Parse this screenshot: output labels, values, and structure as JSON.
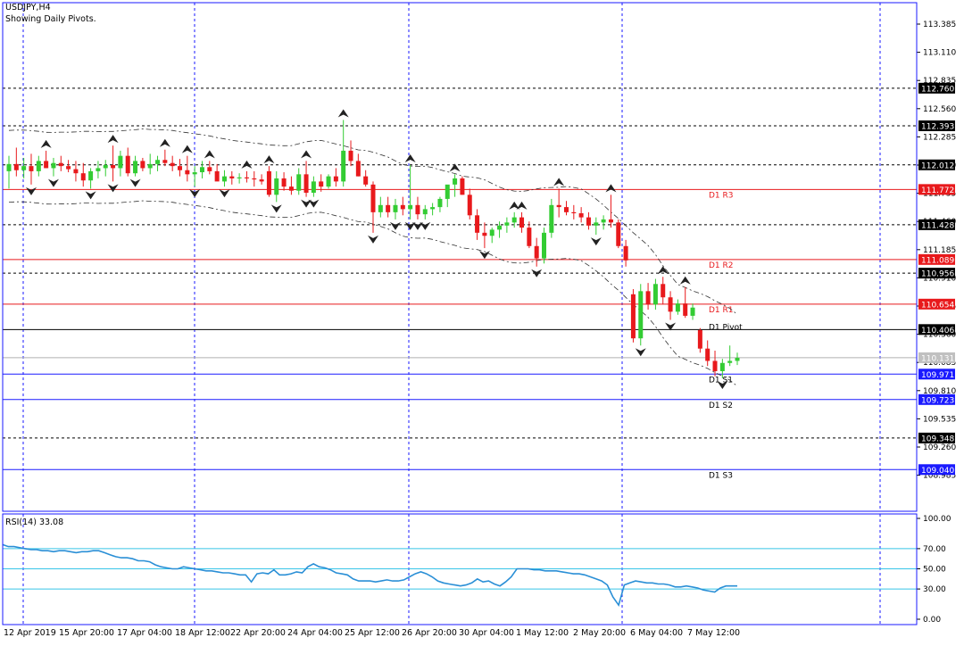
{
  "header": {
    "symbol": "USDJPY,H4",
    "subtitle": "Showing Daily Pivots."
  },
  "colors": {
    "up": "#33cc33",
    "down": "#e8191c",
    "pivot_red": "#e8191c",
    "pivot_blue": "#1a1aff",
    "black_level": "#000000",
    "rsi_line": "#2a8fd6",
    "rsi_level": "#38c5e8",
    "grid_v": "#1a1aff",
    "frame": "#1a1aff"
  },
  "chart_data": [
    {
      "type": "candlestick",
      "title": "USDJPY,H4",
      "subtitle": "Showing Daily Pivots.",
      "ylim": [
        108.885,
        113.385
      ],
      "y_ticks": [
        113.385,
        113.11,
        112.835,
        112.56,
        112.285,
        112.01,
        111.735,
        111.46,
        111.185,
        110.91,
        110.635,
        110.36,
        110.085,
        109.81,
        109.535,
        109.26,
        108.985
      ],
      "x_ticks": [
        "12 Apr 2019",
        "15 Apr 20:00",
        "17 Apr 04:00",
        "18 Apr 12:00",
        "22 Apr 20:00",
        "24 Apr 04:00",
        "25 Apr 12:00",
        "26 Apr 20:00",
        "30 Apr 04:00",
        "1 May 12:00",
        "2 May 20:00",
        "6 May 04:00",
        "7 May 12:00"
      ],
      "current_price": "110.131",
      "pivots": [
        {
          "label": "D1 R3",
          "value": 111.772,
          "text": "111.772",
          "color": "red"
        },
        {
          "label": "D1 R2",
          "value": 111.089,
          "text": "111.089",
          "color": "red"
        },
        {
          "label": "D1 R1",
          "value": 110.654,
          "text": "110.654",
          "color": "red"
        },
        {
          "label": "D1 Pivot",
          "value": 110.406,
          "text": "110.406",
          "color": "black"
        },
        {
          "label": "D1 S1",
          "value": 109.971,
          "text": "109.971",
          "color": "blue"
        },
        {
          "label": "D1 S2",
          "value": 109.723,
          "text": "109.723",
          "color": "blue"
        },
        {
          "label": "D1 S3",
          "value": 109.04,
          "text": "109.040",
          "color": "blue"
        }
      ],
      "fib_levels": [
        {
          "value": 112.76,
          "text": "112.760"
        },
        {
          "value": 112.393,
          "text": "112.393"
        },
        {
          "value": 112.012,
          "text": "112.012"
        },
        {
          "value": 111.428,
          "text": "111.428"
        },
        {
          "value": 110.956,
          "text": "110.956"
        },
        {
          "value": 109.348,
          "text": "109.348"
        }
      ],
      "candles": [
        {
          "o": 111.95,
          "h": 112.1,
          "l": 111.78,
          "c": 112.02
        },
        {
          "o": 112.02,
          "h": 112.18,
          "l": 111.9,
          "c": 111.96
        },
        {
          "o": 111.96,
          "h": 112.08,
          "l": 111.88,
          "c": 112.0
        },
        {
          "o": 112.0,
          "h": 112.12,
          "l": 111.82,
          "c": 111.95
        },
        {
          "o": 111.95,
          "h": 112.1,
          "l": 111.9,
          "c": 112.05
        },
        {
          "o": 112.05,
          "h": 112.15,
          "l": 111.98,
          "c": 111.98
        },
        {
          "o": 111.98,
          "h": 112.08,
          "l": 111.9,
          "c": 112.03
        },
        {
          "o": 112.03,
          "h": 112.1,
          "l": 111.95,
          "c": 112.0
        },
        {
          "o": 112.0,
          "h": 112.06,
          "l": 111.94,
          "c": 111.97
        },
        {
          "o": 111.97,
          "h": 112.05,
          "l": 111.85,
          "c": 111.93
        },
        {
          "o": 111.93,
          "h": 112.03,
          "l": 111.8,
          "c": 111.86
        },
        {
          "o": 111.86,
          "h": 111.98,
          "l": 111.78,
          "c": 111.95
        },
        {
          "o": 111.95,
          "h": 112.05,
          "l": 111.88,
          "c": 111.98
        },
        {
          "o": 111.98,
          "h": 112.06,
          "l": 111.9,
          "c": 112.01
        },
        {
          "o": 112.01,
          "h": 112.2,
          "l": 111.85,
          "c": 111.98
        },
        {
          "o": 111.98,
          "h": 112.15,
          "l": 111.9,
          "c": 112.1
        },
        {
          "o": 112.1,
          "h": 112.18,
          "l": 111.9,
          "c": 111.93
        },
        {
          "o": 111.93,
          "h": 112.1,
          "l": 111.9,
          "c": 112.05
        },
        {
          "o": 112.05,
          "h": 112.08,
          "l": 111.95,
          "c": 111.98
        },
        {
          "o": 111.98,
          "h": 112.12,
          "l": 111.92,
          "c": 112.02
        },
        {
          "o": 112.02,
          "h": 112.1,
          "l": 111.95,
          "c": 112.06
        },
        {
          "o": 112.06,
          "h": 112.16,
          "l": 112.0,
          "c": 112.03
        },
        {
          "o": 112.03,
          "h": 112.1,
          "l": 111.95,
          "c": 112.0
        },
        {
          "o": 112.0,
          "h": 112.07,
          "l": 111.9,
          "c": 111.96
        },
        {
          "o": 111.96,
          "h": 112.1,
          "l": 111.85,
          "c": 111.92
        },
        {
          "o": 111.92,
          "h": 112.0,
          "l": 111.8,
          "c": 111.94
        },
        {
          "o": 111.94,
          "h": 112.05,
          "l": 111.88,
          "c": 111.99
        },
        {
          "o": 111.99,
          "h": 112.05,
          "l": 111.92,
          "c": 111.95
        },
        {
          "o": 111.95,
          "h": 112.02,
          "l": 111.88,
          "c": 111.85
        },
        {
          "o": 111.85,
          "h": 111.96,
          "l": 111.8,
          "c": 111.9
        },
        {
          "o": 111.9,
          "h": 111.95,
          "l": 111.82,
          "c": 111.88
        },
        {
          "o": 111.88,
          "h": 111.93,
          "l": 111.83,
          "c": 111.89
        },
        {
          "o": 111.89,
          "h": 111.95,
          "l": 111.84,
          "c": 111.88
        },
        {
          "o": 111.88,
          "h": 111.95,
          "l": 111.8,
          "c": 111.87
        },
        {
          "o": 111.87,
          "h": 111.92,
          "l": 111.82,
          "c": 111.85
        },
        {
          "o": 111.95,
          "h": 112.0,
          "l": 111.7,
          "c": 111.72
        },
        {
          "o": 111.72,
          "h": 111.95,
          "l": 111.65,
          "c": 111.88
        },
        {
          "o": 111.88,
          "h": 111.94,
          "l": 111.76,
          "c": 111.8
        },
        {
          "o": 111.8,
          "h": 111.9,
          "l": 111.72,
          "c": 111.76
        },
        {
          "o": 111.76,
          "h": 111.98,
          "l": 111.72,
          "c": 111.92
        },
        {
          "o": 111.92,
          "h": 112.05,
          "l": 111.7,
          "c": 111.74
        },
        {
          "o": 111.74,
          "h": 111.9,
          "l": 111.7,
          "c": 111.85
        },
        {
          "o": 111.85,
          "h": 111.92,
          "l": 111.75,
          "c": 111.8
        },
        {
          "o": 111.8,
          "h": 111.92,
          "l": 111.78,
          "c": 111.9
        },
        {
          "o": 111.9,
          "h": 111.98,
          "l": 111.8,
          "c": 111.85
        },
        {
          "o": 111.85,
          "h": 112.45,
          "l": 111.8,
          "c": 112.15
        },
        {
          "o": 112.15,
          "h": 112.25,
          "l": 112.0,
          "c": 112.05
        },
        {
          "o": 112.05,
          "h": 112.12,
          "l": 111.9,
          "c": 111.9
        },
        {
          "o": 111.9,
          "h": 111.96,
          "l": 111.8,
          "c": 111.82
        },
        {
          "o": 111.82,
          "h": 111.85,
          "l": 111.35,
          "c": 111.55
        },
        {
          "o": 111.55,
          "h": 111.7,
          "l": 111.5,
          "c": 111.62
        },
        {
          "o": 111.62,
          "h": 111.7,
          "l": 111.5,
          "c": 111.55
        },
        {
          "o": 111.55,
          "h": 111.68,
          "l": 111.48,
          "c": 111.62
        },
        {
          "o": 111.62,
          "h": 111.7,
          "l": 111.52,
          "c": 111.58
        },
        {
          "o": 111.58,
          "h": 112.01,
          "l": 111.48,
          "c": 111.62
        },
        {
          "o": 111.62,
          "h": 111.7,
          "l": 111.48,
          "c": 111.53
        },
        {
          "o": 111.53,
          "h": 111.62,
          "l": 111.48,
          "c": 111.58
        },
        {
          "o": 111.58,
          "h": 111.64,
          "l": 111.52,
          "c": 111.6
        },
        {
          "o": 111.6,
          "h": 111.7,
          "l": 111.55,
          "c": 111.68
        },
        {
          "o": 111.68,
          "h": 111.8,
          "l": 111.6,
          "c": 111.82
        },
        {
          "o": 111.82,
          "h": 111.92,
          "l": 111.7,
          "c": 111.88
        },
        {
          "o": 111.88,
          "h": 111.9,
          "l": 111.72,
          "c": 111.72
        },
        {
          "o": 111.72,
          "h": 111.78,
          "l": 111.48,
          "c": 111.52
        },
        {
          "o": 111.52,
          "h": 111.58,
          "l": 111.28,
          "c": 111.35
        },
        {
          "o": 111.35,
          "h": 111.45,
          "l": 111.2,
          "c": 111.32
        },
        {
          "o": 111.32,
          "h": 111.4,
          "l": 111.25,
          "c": 111.38
        },
        {
          "o": 111.38,
          "h": 111.46,
          "l": 111.3,
          "c": 111.42
        },
        {
          "o": 111.42,
          "h": 111.5,
          "l": 111.35,
          "c": 111.45
        },
        {
          "o": 111.45,
          "h": 111.55,
          "l": 111.4,
          "c": 111.5
        },
        {
          "o": 111.5,
          "h": 111.55,
          "l": 111.35,
          "c": 111.4
        },
        {
          "o": 111.4,
          "h": 111.46,
          "l": 111.2,
          "c": 111.22
        },
        {
          "o": 111.22,
          "h": 111.3,
          "l": 111.02,
          "c": 111.1
        },
        {
          "o": 111.1,
          "h": 111.4,
          "l": 111.05,
          "c": 111.35
        },
        {
          "o": 111.35,
          "h": 111.68,
          "l": 111.3,
          "c": 111.62
        },
        {
          "o": 111.62,
          "h": 111.78,
          "l": 111.5,
          "c": 111.6
        },
        {
          "o": 111.6,
          "h": 111.66,
          "l": 111.52,
          "c": 111.55
        },
        {
          "o": 111.55,
          "h": 111.62,
          "l": 111.48,
          "c": 111.54
        },
        {
          "o": 111.54,
          "h": 111.6,
          "l": 111.45,
          "c": 111.5
        },
        {
          "o": 111.5,
          "h": 111.55,
          "l": 111.38,
          "c": 111.42
        },
        {
          "o": 111.42,
          "h": 111.5,
          "l": 111.33,
          "c": 111.45
        },
        {
          "o": 111.45,
          "h": 111.52,
          "l": 111.38,
          "c": 111.48
        },
        {
          "o": 111.48,
          "h": 111.72,
          "l": 111.4,
          "c": 111.45
        },
        {
          "o": 111.45,
          "h": 111.48,
          "l": 111.2,
          "c": 111.22
        },
        {
          "o": 111.22,
          "h": 111.28,
          "l": 111.02,
          "c": 111.08
        },
        {
          "o": 110.75,
          "h": 110.8,
          "l": 110.28,
          "c": 110.32
        },
        {
          "o": 110.32,
          "h": 110.85,
          "l": 110.25,
          "c": 110.78
        },
        {
          "o": 110.78,
          "h": 110.86,
          "l": 110.6,
          "c": 110.65
        },
        {
          "o": 110.65,
          "h": 110.9,
          "l": 110.6,
          "c": 110.85
        },
        {
          "o": 110.85,
          "h": 110.92,
          "l": 110.65,
          "c": 110.72
        },
        {
          "o": 110.72,
          "h": 110.78,
          "l": 110.5,
          "c": 110.58
        },
        {
          "o": 110.58,
          "h": 110.7,
          "l": 110.55,
          "c": 110.66
        },
        {
          "o": 110.66,
          "h": 110.82,
          "l": 110.52,
          "c": 110.54
        },
        {
          "o": 110.54,
          "h": 110.66,
          "l": 110.5,
          "c": 110.62
        },
        {
          "o": 110.4,
          "h": 110.42,
          "l": 110.18,
          "c": 110.22
        },
        {
          "o": 110.22,
          "h": 110.3,
          "l": 110.05,
          "c": 110.1
        },
        {
          "o": 110.1,
          "h": 110.2,
          "l": 109.95,
          "c": 110.0
        },
        {
          "o": 110.0,
          "h": 110.12,
          "l": 109.93,
          "c": 110.08
        },
        {
          "o": 110.08,
          "h": 110.25,
          "l": 110.05,
          "c": 110.1
        },
        {
          "o": 110.1,
          "h": 110.18,
          "l": 110.06,
          "c": 110.13
        }
      ]
    },
    {
      "type": "line",
      "title": "RSI(14) 33.08",
      "ylim": [
        0,
        100
      ],
      "y_ticks": [
        "100.00",
        "70.00",
        "50.00",
        "30.00",
        "0.00"
      ],
      "levels": [
        70,
        50,
        30
      ],
      "values": [
        74,
        72,
        72,
        71,
        70,
        69,
        69,
        68,
        68,
        67,
        68,
        68,
        67,
        66,
        67,
        67,
        68,
        68,
        66,
        64,
        62,
        61,
        61,
        60,
        58,
        58,
        57,
        54,
        52,
        51,
        50,
        50,
        52,
        51,
        50,
        49,
        48,
        48,
        47,
        46,
        46,
        45,
        44,
        44,
        37,
        45,
        46,
        45,
        49,
        44,
        44,
        45,
        47,
        46,
        52,
        55,
        52,
        51,
        49,
        46,
        45,
        44,
        40,
        38,
        38,
        38,
        37,
        38,
        39,
        38,
        38,
        39,
        42,
        45,
        47,
        45,
        42,
        38,
        36,
        35,
        34,
        33,
        34,
        36,
        40,
        37,
        38,
        35,
        33,
        37,
        42,
        50,
        50,
        50,
        49,
        49,
        48,
        48,
        48,
        47,
        46,
        45,
        45,
        44,
        42,
        40,
        38,
        34,
        22,
        14,
        34,
        36,
        38,
        37,
        36,
        36,
        35,
        35,
        34,
        32,
        32,
        33,
        32,
        31,
        29,
        28,
        27,
        31,
        33,
        33,
        33
      ]
    }
  ]
}
